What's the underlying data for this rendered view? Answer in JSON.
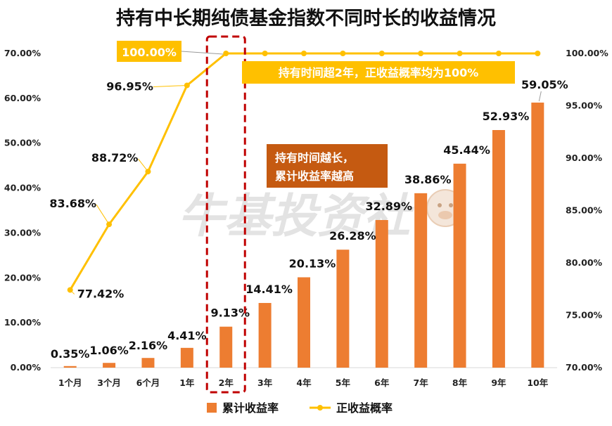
{
  "chart_data": {
    "type": "bar+line",
    "title": "持有中长期纯债基金指数不同时长的收益情况",
    "categories": [
      "1个月",
      "3个月",
      "6个月",
      "1年",
      "2年",
      "3年",
      "4年",
      "5年",
      "6年",
      "7年",
      "8年",
      "9年",
      "10年"
    ],
    "series": [
      {
        "name": "累计收益率",
        "type": "bar",
        "axis": "left",
        "values": [
          0.35,
          1.06,
          2.16,
          4.41,
          9.13,
          14.41,
          20.13,
          26.28,
          32.89,
          38.86,
          45.44,
          52.93,
          59.05
        ],
        "labels": [
          "0.35%",
          "1.06%",
          "2.16%",
          "4.41%",
          "9.13%",
          "14.41%",
          "20.13%",
          "26.28%",
          "32.89%",
          "38.86%",
          "45.44%",
          "52.93%",
          "59.05%"
        ]
      },
      {
        "name": "正收益概率",
        "type": "line",
        "axis": "right",
        "values": [
          77.42,
          83.68,
          88.72,
          96.95,
          100,
          100,
          100,
          100,
          100,
          100,
          100,
          100,
          100
        ],
        "labels": [
          "77.42%",
          "83.68%",
          "88.72%",
          "96.95%",
          "100.00%"
        ]
      }
    ],
    "y_left": {
      "min": 0,
      "max": 70,
      "step": 10,
      "ticks": [
        "0.00%",
        "10.00%",
        "20.00%",
        "30.00%",
        "40.00%",
        "50.00%",
        "60.00%",
        "70.00%"
      ]
    },
    "y_right": {
      "min": 70,
      "max": 100,
      "step": 5,
      "ticks": [
        "70.00%",
        "75.00%",
        "80.00%",
        "85.00%",
        "90.00%",
        "95.00%",
        "100.00%"
      ]
    },
    "annotations": {
      "highlight_category": "2年",
      "note_100": "持有时间超2年，正收益概率均为100%",
      "note_longer_line1": "持有时间越长，",
      "note_longer_line2": "累计收益率越高"
    },
    "watermark": "牛基投资社",
    "legend_position": "bottom",
    "grid": false
  },
  "colors": {
    "bar": "#ED7D31",
    "line": "#FFC000",
    "callout_orange": "#C55A11",
    "highlight_border": "#C00000",
    "watermark": "#D9D9D9"
  }
}
